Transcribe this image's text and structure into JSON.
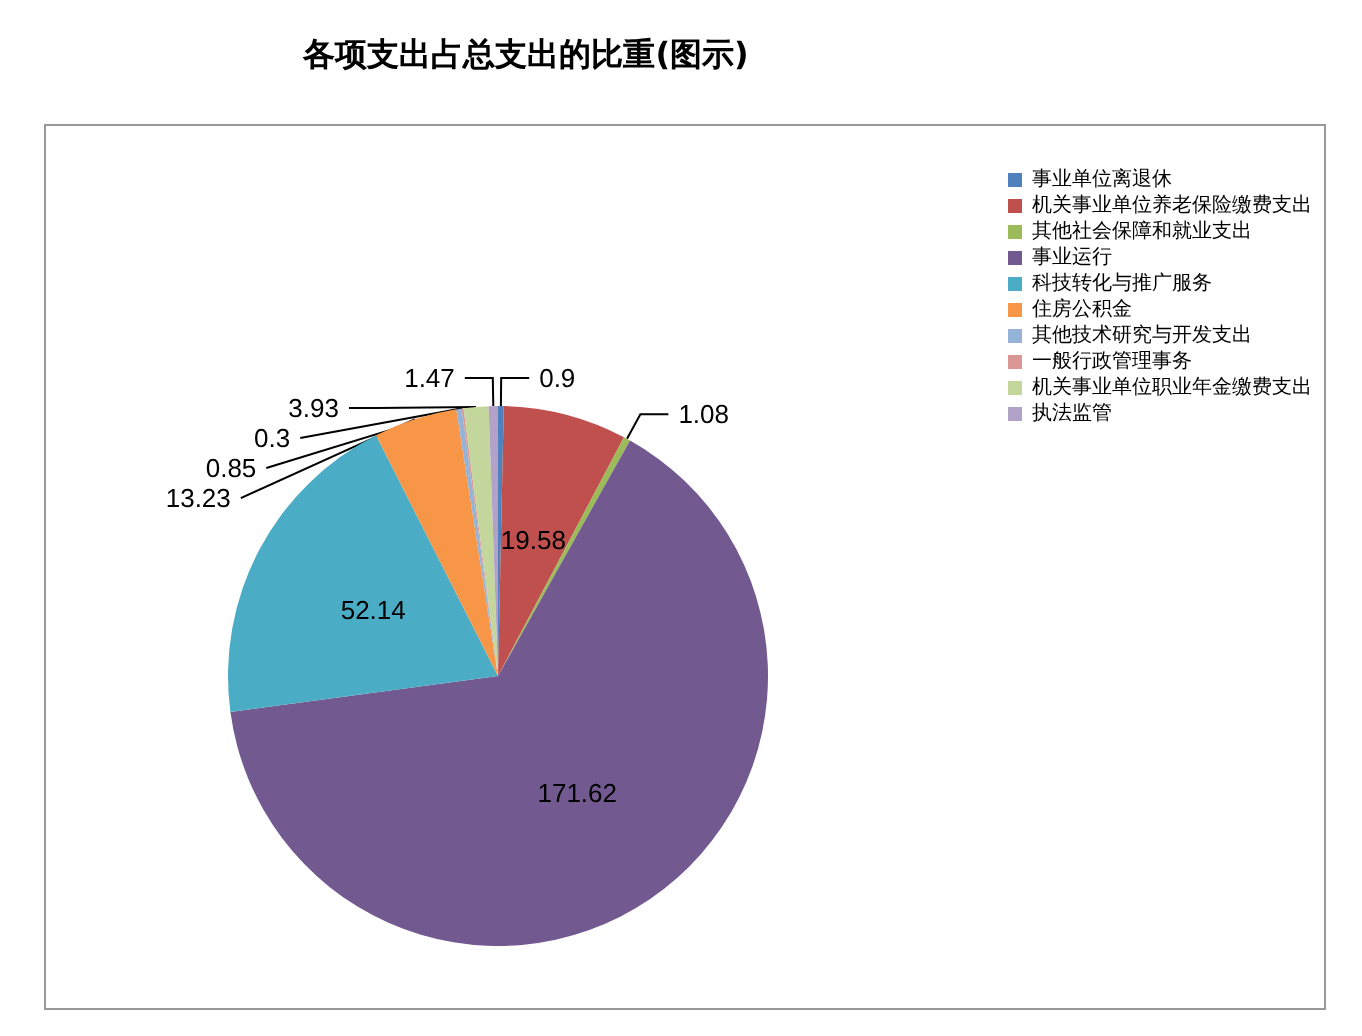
{
  "chart_data": {
    "type": "pie",
    "title": "各项支出占总支出的比重(图示)",
    "categories": [
      "事业单位离退休",
      "机关事业单位养老保险缴费支出",
      "其他社会保障和就业支出",
      "事业运行",
      "科技转化与推广服务",
      "住房公积金",
      "其他技术研究与开发支出",
      "一般行政管理事务",
      "机关事业单位职业年金缴费支出",
      "执法监管"
    ],
    "values": [
      0.9,
      19.58,
      1.08,
      171.62,
      52.14,
      13.23,
      0.85,
      0.3,
      3.93,
      1.47
    ],
    "colors": [
      "#4f81bd",
      "#c0504d",
      "#9bbb59",
      "#725990",
      "#4bacc6",
      "#f79646",
      "#95b3d7",
      "#d99694",
      "#c3d69b",
      "#b3a2c7"
    ],
    "data_labels": true,
    "legend": "right"
  }
}
